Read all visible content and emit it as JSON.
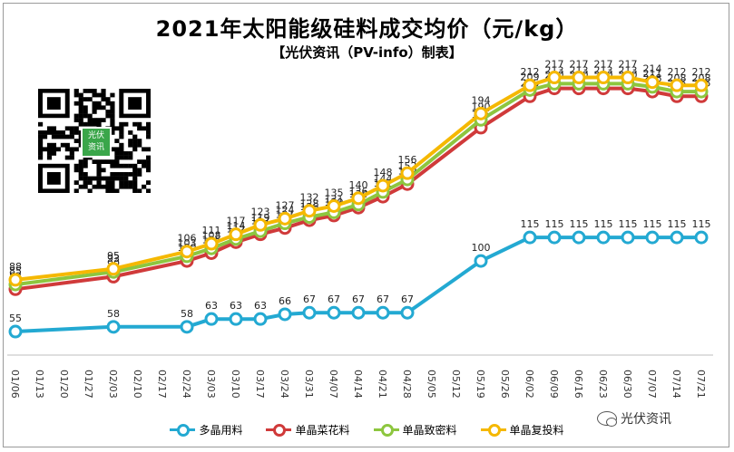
{
  "chart_data": {
    "type": "line",
    "title": "2021年太阳能级硅料成交均价（元/kg）",
    "subtitle": "【光伏资讯（PV-info）制表】",
    "x": [
      "01/06",
      "01/13",
      "01/20",
      "01/27",
      "02/03",
      "02/10",
      "02/17",
      "02/24",
      "03/03",
      "03/10",
      "03/17",
      "03/24",
      "03/31",
      "04/07",
      "04/14",
      "04/21",
      "04/28",
      "05/05",
      "05/12",
      "05/19",
      "05/26",
      "06/02",
      "06/09",
      "06/16",
      "06/23",
      "06/30",
      "07/07",
      "07/14",
      "07/21"
    ],
    "ylim": [
      40,
      230
    ],
    "grid": false,
    "legend_position": "bottom",
    "series": [
      {
        "name": "多晶用料",
        "color": "#23a9d2",
        "values": [
          55,
          null,
          null,
          null,
          58,
          null,
          null,
          58,
          63,
          63,
          63,
          66,
          67,
          67,
          67,
          67,
          67,
          null,
          null,
          100,
          null,
          115,
          115,
          115,
          115,
          115,
          115,
          115,
          115
        ]
      },
      {
        "name": "单晶菜花料",
        "color": "#d03a3a",
        "values": [
          82,
          null,
          null,
          null,
          90,
          null,
          null,
          100,
          105,
          112,
          117,
          121,
          126,
          129,
          134,
          141,
          149,
          null,
          null,
          185,
          null,
          205,
          210,
          210,
          210,
          210,
          208,
          205,
          205
        ]
      },
      {
        "name": "单晶致密料",
        "color": "#8dc63f",
        "values": [
          85,
          null,
          null,
          null,
          93,
          null,
          null,
          103,
          108,
          114,
          119,
          124,
          128,
          131,
          136,
          144,
          152,
          null,
          null,
          190,
          null,
          209,
          213,
          213,
          213,
          213,
          211,
          208,
          208
        ]
      },
      {
        "name": "单晶复投料",
        "color": "#f5b800",
        "values": [
          88,
          null,
          null,
          null,
          95,
          null,
          null,
          106,
          111,
          117,
          123,
          127,
          132,
          135,
          140,
          148,
          156,
          null,
          null,
          194,
          null,
          212,
          217,
          217,
          217,
          217,
          214,
          212,
          212
        ]
      }
    ]
  },
  "qr": {
    "center_text_line1": "光伏",
    "center_text_line2": "资讯"
  },
  "watermark": {
    "text": "光伏资讯",
    "icon": "wechat-icon"
  }
}
